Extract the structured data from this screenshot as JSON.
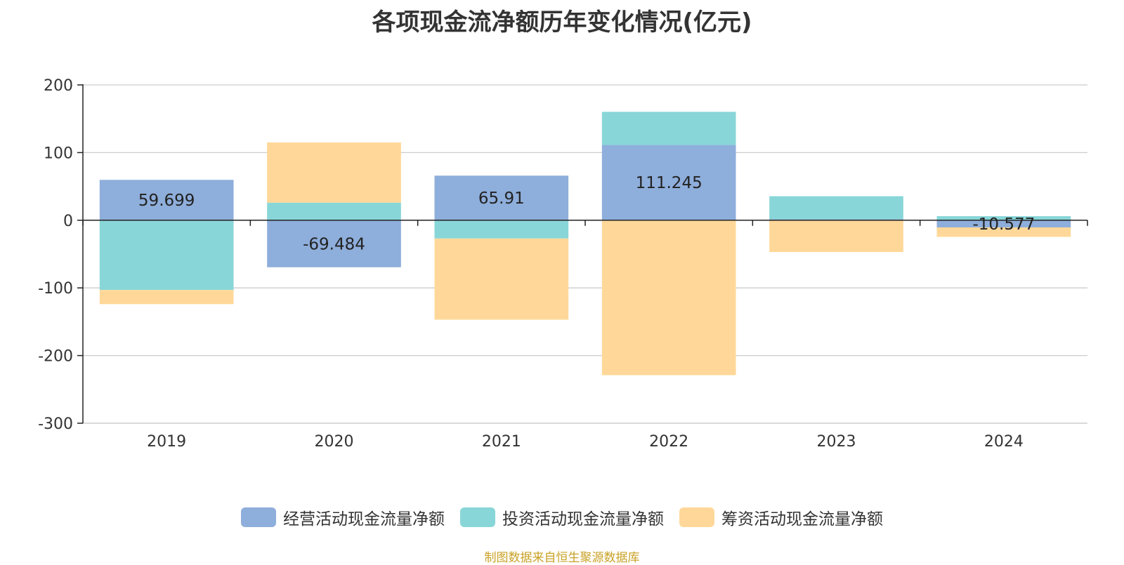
{
  "chart_data": {
    "type": "bar",
    "stacked": true,
    "title": "各项现金流净额历年变化情况(亿元)",
    "categories": [
      "2019",
      "2020",
      "2021",
      "2022",
      "2023",
      "2024"
    ],
    "ylim": [
      -300,
      200
    ],
    "yticks": [
      200,
      100,
      0,
      -100,
      -200,
      -300
    ],
    "grid": true,
    "legend_position": "bottom",
    "series": [
      {
        "name": "经营活动现金流量净额",
        "color": "#8eaedb",
        "values": [
          59.699,
          -69.484,
          65.91,
          111.245,
          1.5,
          -10.577
        ],
        "labels": [
          "59.699",
          "-69.484",
          "65.91",
          "111.245",
          "",
          "-10.577"
        ]
      },
      {
        "name": "投资活动现金流量净额",
        "color": "#88d6d8",
        "values": [
          -103,
          26,
          -27,
          49,
          34,
          6
        ],
        "labels": [
          "",
          "",
          "",
          "",
          "",
          ""
        ]
      },
      {
        "name": "筹资活动现金流量净额",
        "color": "#ffd899",
        "values": [
          -21,
          89,
          -120,
          -229,
          -47,
          -14
        ],
        "labels": [
          "",
          "",
          "",
          "",
          "",
          ""
        ]
      }
    ]
  },
  "source_note": "制图数据来自恒生聚源数据库"
}
